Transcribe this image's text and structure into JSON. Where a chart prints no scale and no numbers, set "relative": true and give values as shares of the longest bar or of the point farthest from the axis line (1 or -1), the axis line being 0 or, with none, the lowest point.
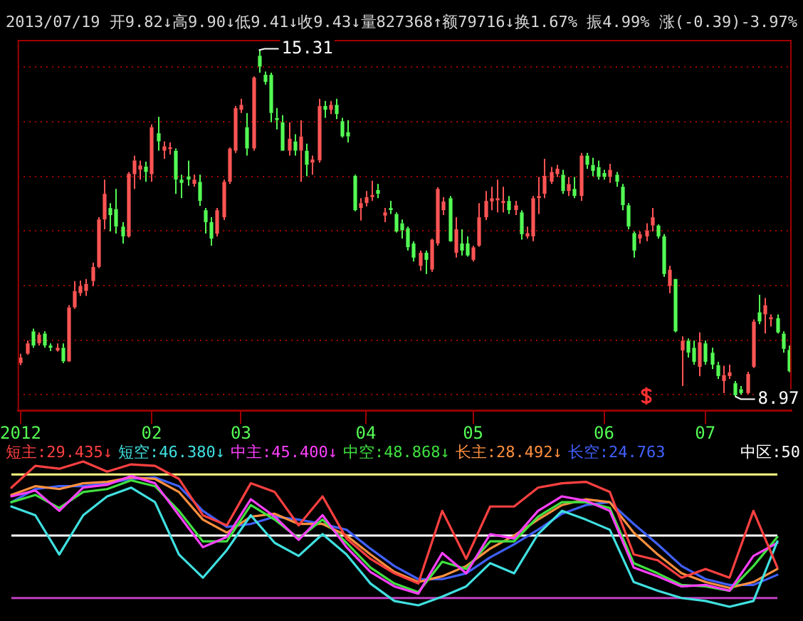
{
  "chart_data": [
    {
      "type": "candlestick",
      "categories": [
        "2012",
        null,
        null,
        null,
        null,
        null,
        null,
        null,
        null,
        null,
        null,
        null,
        null,
        null,
        null,
        null,
        null,
        null,
        null,
        null,
        null,
        null,
        "02",
        null,
        null,
        null,
        null,
        null,
        null,
        null,
        null,
        null,
        null,
        null,
        null,
        null,
        null,
        "03",
        null,
        null,
        null,
        null,
        null,
        null,
        null,
        null,
        null,
        null,
        null,
        null,
        null,
        null,
        null,
        null,
        null,
        null,
        null,
        null,
        "04",
        null,
        null,
        null,
        null,
        null,
        null,
        null,
        null,
        null,
        null,
        null,
        null,
        null,
        null,
        null,
        null,
        null,
        "05",
        null,
        null,
        null,
        null,
        null,
        null,
        null,
        null,
        null,
        null,
        null,
        null,
        null,
        null,
        null,
        null,
        null,
        null,
        null,
        null,
        null,
        "06",
        null,
        null,
        null,
        null,
        null,
        null,
        null,
        null,
        null,
        null,
        null,
        null,
        null,
        null,
        null,
        null,
        "07",
        null,
        null,
        null,
        null,
        null,
        null,
        null,
        null,
        null,
        null,
        null,
        null,
        null,
        null
      ],
      "ohlc": [
        [
          9.58,
          9.75,
          9.54,
          9.68
        ],
        [
          9.75,
          9.99,
          9.73,
          9.94
        ],
        [
          10.16,
          10.21,
          9.86,
          9.9
        ],
        [
          9.94,
          10.14,
          9.9,
          10.1
        ],
        [
          10.12,
          10.16,
          9.86,
          9.9
        ],
        [
          9.9,
          9.94,
          9.8,
          9.86
        ],
        [
          9.81,
          9.94,
          9.79,
          9.86
        ],
        [
          9.86,
          9.94,
          9.58,
          9.61
        ],
        [
          9.61,
          10.64,
          9.6,
          10.6
        ],
        [
          10.6,
          11.08,
          10.57,
          10.9
        ],
        [
          10.86,
          11.09,
          10.81,
          10.99
        ],
        [
          10.9,
          11.12,
          10.81,
          11.03
        ],
        [
          11.08,
          11.42,
          10.99,
          11.34
        ],
        [
          11.34,
          12.25,
          11.32,
          12.21
        ],
        [
          12.21,
          12.94,
          12.03,
          12.68
        ],
        [
          12.42,
          12.51,
          11.99,
          12.29
        ],
        [
          12.4,
          12.77,
          11.95,
          12.08
        ],
        [
          12.08,
          12.16,
          11.77,
          11.9
        ],
        [
          11.9,
          13.08,
          11.88,
          13.05
        ],
        [
          13.04,
          13.38,
          12.77,
          13.29
        ],
        [
          13.12,
          13.29,
          12.94,
          13.2
        ],
        [
          13.18,
          13.27,
          12.9,
          13.08
        ],
        [
          13.04,
          13.95,
          12.9,
          13.9
        ],
        [
          13.79,
          14.09,
          13.47,
          13.64
        ],
        [
          13.47,
          13.64,
          13.32,
          13.55
        ],
        [
          13.5,
          13.62,
          13.4,
          13.53
        ],
        [
          13.47,
          13.51,
          12.68,
          12.94
        ],
        [
          12.94,
          13.03,
          12.6,
          12.88
        ],
        [
          13.0,
          13.29,
          12.83,
          12.94
        ],
        [
          12.86,
          13.03,
          12.81,
          12.94
        ],
        [
          12.9,
          13.03,
          12.46,
          12.55
        ],
        [
          12.38,
          12.42,
          11.95,
          12.16
        ],
        [
          12.16,
          12.25,
          11.73,
          11.86
        ],
        [
          11.95,
          12.42,
          11.9,
          12.38
        ],
        [
          12.25,
          12.94,
          12.2,
          12.9
        ],
        [
          12.9,
          13.53,
          12.86,
          13.51
        ],
        [
          13.47,
          14.29,
          13.43,
          14.25
        ],
        [
          14.22,
          14.42,
          14.16,
          14.31
        ],
        [
          13.9,
          14.16,
          13.38,
          13.51
        ],
        [
          13.51,
          14.83,
          13.47,
          14.81
        ],
        [
          15.21,
          15.31,
          14.9,
          15.01
        ],
        [
          14.86,
          14.92,
          14.68,
          14.73
        ],
        [
          14.86,
          14.9,
          13.99,
          14.16
        ],
        [
          14.07,
          14.25,
          13.86,
          14.03
        ],
        [
          13.99,
          14.12,
          13.47,
          13.47
        ],
        [
          13.47,
          13.99,
          13.38,
          13.69
        ],
        [
          13.64,
          13.77,
          13.38,
          13.47
        ],
        [
          13.47,
          14.03,
          12.9,
          13.73
        ],
        [
          13.47,
          13.6,
          13.0,
          13.21
        ],
        [
          13.25,
          13.38,
          13.03,
          13.31
        ],
        [
          13.29,
          14.42,
          13.25,
          14.29
        ],
        [
          14.29,
          14.38,
          14.07,
          14.22
        ],
        [
          14.22,
          14.38,
          14.14,
          14.31
        ],
        [
          14.31,
          14.42,
          14.05,
          14.14
        ],
        [
          14.01,
          14.07,
          13.71,
          13.73
        ],
        [
          13.81,
          14.03,
          13.62,
          13.73
        ],
        [
          13.01,
          13.03,
          12.36,
          12.38
        ],
        [
          12.42,
          12.6,
          12.19,
          12.51
        ],
        [
          12.51,
          12.73,
          12.45,
          12.62
        ],
        [
          12.62,
          12.92,
          12.55,
          12.66
        ],
        [
          12.75,
          12.86,
          12.6,
          12.68
        ],
        [
          12.28,
          12.42,
          12.16,
          12.34
        ],
        [
          12.42,
          12.55,
          12.31,
          12.38
        ],
        [
          12.31,
          12.34,
          11.97,
          11.99
        ],
        [
          12.14,
          12.21,
          11.86,
          12.01
        ],
        [
          12.05,
          12.08,
          11.64,
          11.7
        ],
        [
          11.77,
          11.81,
          11.44,
          11.51
        ],
        [
          11.36,
          11.64,
          11.27,
          11.6
        ],
        [
          11.6,
          11.64,
          11.21,
          11.47
        ],
        [
          11.29,
          11.86,
          11.25,
          11.84
        ],
        [
          11.77,
          12.8,
          11.73,
          12.77
        ],
        [
          12.38,
          12.62,
          12.29,
          12.54
        ],
        [
          12.6,
          12.64,
          11.8,
          11.81
        ],
        [
          11.6,
          12.25,
          11.51,
          12.03
        ],
        [
          11.77,
          12.03,
          11.55,
          11.64
        ],
        [
          11.77,
          11.9,
          11.53,
          11.55
        ],
        [
          11.47,
          11.73,
          11.44,
          11.7
        ],
        [
          11.73,
          12.51,
          11.71,
          12.25
        ],
        [
          12.25,
          12.73,
          12.2,
          12.55
        ],
        [
          12.54,
          12.81,
          12.38,
          12.6
        ],
        [
          12.56,
          12.94,
          12.34,
          12.6
        ],
        [
          12.51,
          12.81,
          12.34,
          12.55
        ],
        [
          12.55,
          12.64,
          12.31,
          12.38
        ],
        [
          12.38,
          12.55,
          12.29,
          12.47
        ],
        [
          12.34,
          12.38,
          11.84,
          11.94
        ],
        [
          11.9,
          12.08,
          11.86,
          11.96
        ],
        [
          11.9,
          12.64,
          11.81,
          12.6
        ],
        [
          12.6,
          12.99,
          12.31,
          12.64
        ],
        [
          12.68,
          13.32,
          12.6,
          13.01
        ],
        [
          12.9,
          13.17,
          12.86,
          13.08
        ],
        [
          13.04,
          13.21,
          12.99,
          13.14
        ],
        [
          13.03,
          13.12,
          12.68,
          12.73
        ],
        [
          12.73,
          12.99,
          12.64,
          12.86
        ],
        [
          12.77,
          12.99,
          12.6,
          12.64
        ],
        [
          12.64,
          13.43,
          12.55,
          13.38
        ],
        [
          13.38,
          13.43,
          13.14,
          13.21
        ],
        [
          13.21,
          13.34,
          13.0,
          13.1
        ],
        [
          13.17,
          13.29,
          12.94,
          12.99
        ],
        [
          13.06,
          13.12,
          12.94,
          12.99
        ],
        [
          12.99,
          13.23,
          12.88,
          13.12
        ],
        [
          13.03,
          13.08,
          12.81,
          12.9
        ],
        [
          12.81,
          12.86,
          12.38,
          12.47
        ],
        [
          12.47,
          12.51,
          12.03,
          12.08
        ],
        [
          11.96,
          11.99,
          11.51,
          11.64
        ],
        [
          11.86,
          11.99,
          11.77,
          11.94
        ],
        [
          11.9,
          12.14,
          11.81,
          12.01
        ],
        [
          12.1,
          12.42,
          11.99,
          12.25
        ],
        [
          12.1,
          12.12,
          11.86,
          11.9
        ],
        [
          11.9,
          11.94,
          11.16,
          11.21
        ],
        [
          10.99,
          11.36,
          10.86,
          11.29
        ],
        [
          11.12,
          11.12,
          10.14,
          10.16
        ],
        [
          9.81,
          10.07,
          9.16,
          9.99
        ],
        [
          9.99,
          10.03,
          9.68,
          9.77
        ],
        [
          9.86,
          9.99,
          9.55,
          9.6
        ],
        [
          9.51,
          10.14,
          9.34,
          9.96
        ],
        [
          9.94,
          9.99,
          9.55,
          9.6
        ],
        [
          9.77,
          9.86,
          9.47,
          9.55
        ],
        [
          9.54,
          9.6,
          9.29,
          9.34
        ],
        [
          9.25,
          9.53,
          9.03,
          9.36
        ],
        [
          9.34,
          9.55,
          9.29,
          9.41
        ],
        [
          9.21,
          9.25,
          8.97,
          8.99
        ],
        [
          9.1,
          9.16,
          9.0,
          9.03
        ],
        [
          9.03,
          9.42,
          9.01,
          9.38
        ],
        [
          9.51,
          10.38,
          9.49,
          10.34
        ],
        [
          10.51,
          10.83,
          10.29,
          10.34
        ],
        [
          10.47,
          10.77,
          10.12,
          10.64
        ],
        [
          10.38,
          10.47,
          10.25,
          10.42
        ],
        [
          10.4,
          10.47,
          10.12,
          10.14
        ],
        [
          10.12,
          10.16,
          9.77,
          9.84
        ],
        [
          9.82,
          9.9,
          9.41,
          9.43
        ]
      ],
      "colors": [
        "#ff5454",
        "#ff5454",
        "#54fc54",
        "#ff5454",
        "#54fc54",
        "#54fc54",
        "#ff5454",
        "#54fc54",
        "#ff5454",
        "#ff5454",
        "#ff5454",
        "#ff5454",
        "#ff5454",
        "#ff5454",
        "#ff5454",
        "#54fc54",
        "#54fc54",
        "#54fc54",
        "#ff5454",
        "#ff5454",
        "#ff5454",
        "#54fc54",
        "#ff5454",
        "#54fc54",
        "#ff5454",
        "#ff5454",
        "#54fc54",
        "#54fc54",
        "#54fc54",
        "#ff5454",
        "#54fc54",
        "#54fc54",
        "#54fc54",
        "#ff5454",
        "#ff5454",
        "#ff5454",
        "#ff5454",
        "#ff5454",
        "#54fc54",
        "#ff5454",
        "#54fc54",
        "#54fc54",
        "#54fc54",
        "#54fc54",
        "#54fc54",
        "#ff5454",
        "#54fc54",
        "#ff5454",
        "#54fc54",
        "#ff5454",
        "#ff5454",
        "#54fc54",
        "#ff5454",
        "#54fc54",
        "#54fc54",
        "#54fc54",
        "#54fc54",
        "#ff5454",
        "#ff5454",
        "#ff5454",
        "#54fc54",
        "#ff5454",
        "#54fc54",
        "#54fc54",
        "#54fc54",
        "#54fc54",
        "#54fc54",
        "#ff5454",
        "#54fc54",
        "#ff5454",
        "#ff5454",
        "#ff5454",
        "#54fc54",
        "#ff5454",
        "#54fc54",
        "#54fc54",
        "#ff5454",
        "#ff5454",
        "#ff5454",
        "#ff5454",
        "#ff5454",
        "#ff5454",
        "#54fc54",
        "#ff5454",
        "#54fc54",
        "#ff5454",
        "#ff5454",
        "#ff5454",
        "#ff5454",
        "#ff5454",
        "#ff5454",
        "#54fc54",
        "#ff5454",
        "#54fc54",
        "#ff5454",
        "#54fc54",
        "#54fc54",
        "#54fc54",
        "#54fc54",
        "#ff5454",
        "#54fc54",
        "#54fc54",
        "#54fc54",
        "#54fc54",
        "#ff5454",
        "#ff5454",
        "#ff5454",
        "#54fc54",
        "#54fc54",
        "#ff5454",
        "#54fc54",
        "#ff5454",
        "#54fc54",
        "#54fc54",
        "#ff5454",
        "#54fc54",
        "#54fc54",
        "#54fc54",
        "#ff5454",
        "#ff5454",
        "#54fc54",
        "#54fc54",
        "#ff5454",
        "#ff5454",
        "#54fc54",
        "#ff5454",
        "#ff5454",
        "#54fc54",
        "#54fc54",
        "#54fc54"
      ],
      "ylim": [
        8.7,
        15.5
      ],
      "yticks": [
        {
          "value": 9,
          "label": null
        },
        {
          "value": 10,
          "label": null
        },
        {
          "value": 11,
          "label": null
        },
        {
          "value": 12,
          "label": null
        },
        {
          "value": 13,
          "label": null
        },
        {
          "value": 14,
          "label": null
        },
        {
          "value": 15,
          "label": null
        }
      ],
      "grid": "y",
      "tick_labels": "x",
      "annotations": [
        "2013/07/19 开9.82↓高9.90↓低9.41↓收9.43↓量827368↑额79716↓换1.67% 振4.99% 涨(-0.39)-3.97%",
        "15.31",
        "8.97"
      ]
    },
    {
      "type": "line",
      "categories": [
        null,
        null,
        null,
        null,
        null,
        null,
        null,
        null,
        null,
        null,
        null,
        null,
        null,
        null,
        null,
        null,
        null,
        null,
        null,
        null,
        null,
        null,
        null,
        null,
        null,
        null,
        null,
        null,
        null,
        null,
        null,
        null,
        null
      ],
      "series": [
        {
          "name": "短主:29.435↓",
          "color": "#ff4040",
          "values": [
            0.82,
            0.97,
            0.95,
            1.0,
            0.93,
            0.98,
            0.97,
            0.88,
            0.63,
            0.56,
            0.85,
            0.79,
            0.56,
            0.76,
            0.47,
            0.33,
            0.23,
            0.16,
            0.66,
            0.33,
            0.69,
            0.69,
            0.82,
            0.85,
            0.86,
            0.79,
            0.36,
            0.32,
            0.2,
            0.26,
            0.2,
            0.66,
            0.27
          ]
        },
        {
          "name": "短空:46.380↓",
          "color": "#40e0e0",
          "values": [
            0.69,
            0.63,
            0.36,
            0.63,
            0.76,
            0.82,
            0.72,
            0.36,
            0.2,
            0.39,
            0.63,
            0.44,
            0.35,
            0.5,
            0.36,
            0.16,
            0.04,
            0.01,
            0.07,
            0.14,
            0.3,
            0.23,
            0.5,
            0.66,
            0.6,
            0.53,
            0.17,
            0.11,
            0.06,
            0.04,
            0,
            0.04,
            0.45
          ]
        },
        {
          "name": "中主:45.400↓",
          "color": "#ff40ff",
          "values": [
            0.76,
            0.8,
            0.66,
            0.82,
            0.84,
            0.9,
            0.85,
            0.63,
            0.41,
            0.48,
            0.74,
            0.62,
            0.46,
            0.63,
            0.41,
            0.24,
            0.14,
            0.09,
            0.37,
            0.23,
            0.5,
            0.47,
            0.66,
            0.76,
            0.73,
            0.66,
            0.27,
            0.21,
            0.14,
            0.15,
            0.11,
            0.35,
            0.44
          ]
        },
        {
          "name": "中空:48.868↓",
          "color": "#40e040",
          "values": [
            0.72,
            0.77,
            0.68,
            0.79,
            0.81,
            0.87,
            0.83,
            0.66,
            0.45,
            0.45,
            0.7,
            0.6,
            0.47,
            0.6,
            0.44,
            0.27,
            0.16,
            0.1,
            0.31,
            0.26,
            0.45,
            0.45,
            0.62,
            0.72,
            0.72,
            0.68,
            0.3,
            0.23,
            0.15,
            0.14,
            0.11,
            0.28,
            0.48
          ]
        },
        {
          "name": "长主:28.492↓",
          "color": "#ff9040",
          "values": [
            0.77,
            0.83,
            0.81,
            0.85,
            0.86,
            0.89,
            0.88,
            0.79,
            0.6,
            0.51,
            0.62,
            0.64,
            0.57,
            0.57,
            0.49,
            0.36,
            0.24,
            0.17,
            0.21,
            0.28,
            0.4,
            0.49,
            0.6,
            0.7,
            0.74,
            0.72,
            0.51,
            0.36,
            0.23,
            0.17,
            0.13,
            0.17,
            0.26
          ]
        },
        {
          "name": "长空:24.763",
          "color": "#4060ff",
          "values": [
            0.72,
            0.81,
            0.83,
            0.83,
            0.85,
            0.88,
            0.89,
            0.83,
            0.66,
            0.55,
            0.57,
            0.62,
            0.6,
            0.57,
            0.53,
            0.4,
            0.28,
            0.19,
            0.19,
            0.23,
            0.34,
            0.43,
            0.53,
            0.64,
            0.7,
            0.72,
            0.57,
            0.43,
            0.28,
            0.19,
            0.15,
            0.15,
            0.22
          ]
        }
      ],
      "relative": true,
      "ref_lines": [
        {
          "axis": "y",
          "value": 0.91,
          "color": "#ffff80"
        },
        {
          "axis": "y",
          "value": 0.49,
          "color": "#ffffff"
        },
        {
          "axis": "y",
          "value": 0.06,
          "color": "#c040c0"
        }
      ],
      "annotations": [
        "中区:50"
      ],
      "legend": "top",
      "tick_labels": false
    }
  ]
}
